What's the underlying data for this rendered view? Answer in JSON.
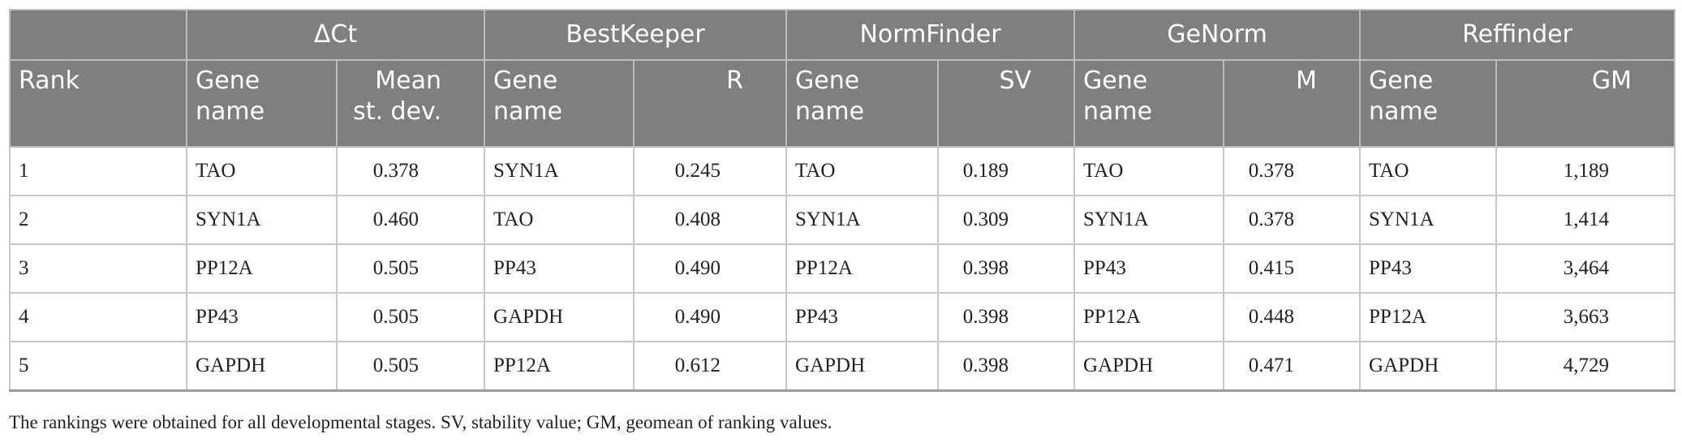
{
  "table": {
    "groups": [
      "ΔCt",
      "BestKeeper",
      "NormFinder",
      "GeNorm",
      "Reffinder"
    ],
    "rank_header": "Rank",
    "subheaders": [
      [
        "Gene name",
        "Mean st. dev."
      ],
      [
        "Gene name",
        "R"
      ],
      [
        "Gene name",
        "SV"
      ],
      [
        "Gene name",
        "M"
      ],
      [
        "Gene name",
        "GM"
      ]
    ],
    "rows": [
      [
        "1",
        "TAO",
        "0.378",
        "SYN1A",
        "0.245",
        "TAO",
        "0.189",
        "TAO",
        "0.378",
        "TAO",
        "1,189"
      ],
      [
        "2",
        "SYN1A",
        "0.460",
        "TAO",
        "0.408",
        "SYN1A",
        "0.309",
        "SYN1A",
        "0.378",
        "SYN1A",
        "1,414"
      ],
      [
        "3",
        "PP12A",
        "0.505",
        "PP43",
        "0.490",
        "PP12A",
        "0.398",
        "PP43",
        "0.415",
        "PP43",
        "3,464"
      ],
      [
        "4",
        "PP43",
        "0.505",
        "GAPDH",
        "0.490",
        "PP43",
        "0.398",
        "PP12A",
        "0.448",
        "PP12A",
        "3,663"
      ],
      [
        "5",
        "GAPDH",
        "0.505",
        "PP12A",
        "0.612",
        "GAPDH",
        "0.398",
        "GAPDH",
        "0.471",
        "GAPDH",
        "4,729"
      ]
    ],
    "footnote": "The rankings were obtained for all developmental stages. SV, stability value; GM, geomean of ranking values."
  }
}
